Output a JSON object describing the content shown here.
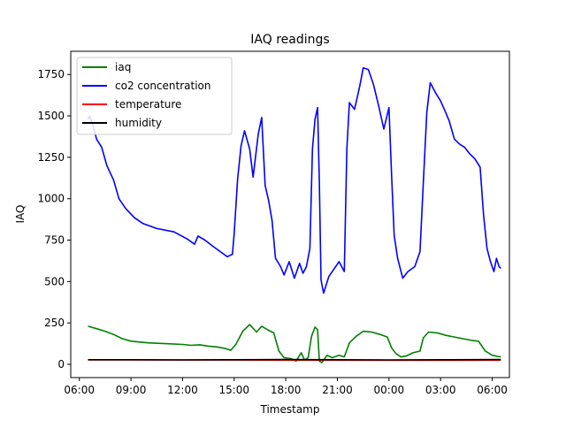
{
  "chart_data": {
    "type": "line",
    "title": "IAQ readings",
    "xlabel": "Timestamp",
    "ylabel": "IAQ",
    "xlim_hours": [
      5.5,
      31.0
    ],
    "ylim": [
      -80,
      1890
    ],
    "xticks": [
      {
        "value": 6,
        "label": "06:00"
      },
      {
        "value": 9,
        "label": "09:00"
      },
      {
        "value": 12,
        "label": "12:00"
      },
      {
        "value": 15,
        "label": "15:00"
      },
      {
        "value": 18,
        "label": "18:00"
      },
      {
        "value": 21,
        "label": "21:00"
      },
      {
        "value": 24,
        "label": "00:00"
      },
      {
        "value": 27,
        "label": "03:00"
      },
      {
        "value": 30,
        "label": "06:00"
      }
    ],
    "yticks": [
      0,
      250,
      500,
      750,
      1000,
      1250,
      1500,
      1750
    ],
    "grid": false,
    "legend": "upper-left",
    "series": [
      {
        "name": "iaq",
        "color": "#008000",
        "points": [
          [
            6.5,
            230
          ],
          [
            7.0,
            215
          ],
          [
            7.5,
            200
          ],
          [
            8.0,
            180
          ],
          [
            8.5,
            155
          ],
          [
            9.0,
            140
          ],
          [
            10.0,
            130
          ],
          [
            11.0,
            125
          ],
          [
            12.0,
            120
          ],
          [
            12.5,
            115
          ],
          [
            13.0,
            118
          ],
          [
            13.5,
            110
          ],
          [
            14.0,
            105
          ],
          [
            14.5,
            95
          ],
          [
            14.8,
            85
          ],
          [
            15.1,
            120
          ],
          [
            15.5,
            200
          ],
          [
            15.9,
            240
          ],
          [
            16.3,
            195
          ],
          [
            16.6,
            230
          ],
          [
            17.0,
            205
          ],
          [
            17.3,
            190
          ],
          [
            17.6,
            80
          ],
          [
            17.9,
            40
          ],
          [
            18.3,
            35
          ],
          [
            18.6,
            20
          ],
          [
            18.9,
            70
          ],
          [
            19.1,
            25
          ],
          [
            19.3,
            40
          ],
          [
            19.5,
            170
          ],
          [
            19.7,
            225
          ],
          [
            19.85,
            210
          ],
          [
            19.95,
            20
          ],
          [
            20.1,
            10
          ],
          [
            20.4,
            55
          ],
          [
            20.7,
            40
          ],
          [
            21.1,
            55
          ],
          [
            21.4,
            45
          ],
          [
            21.7,
            130
          ],
          [
            22.1,
            170
          ],
          [
            22.5,
            200
          ],
          [
            23.0,
            195
          ],
          [
            23.5,
            180
          ],
          [
            23.9,
            165
          ],
          [
            24.15,
            100
          ],
          [
            24.4,
            65
          ],
          [
            24.7,
            45
          ],
          [
            25.0,
            50
          ],
          [
            25.4,
            70
          ],
          [
            25.8,
            80
          ],
          [
            26.0,
            160
          ],
          [
            26.3,
            195
          ],
          [
            26.8,
            190
          ],
          [
            27.3,
            175
          ],
          [
            27.8,
            165
          ],
          [
            28.3,
            155
          ],
          [
            28.8,
            145
          ],
          [
            29.2,
            140
          ],
          [
            29.6,
            80
          ],
          [
            30.0,
            55
          ],
          [
            30.3,
            48
          ],
          [
            30.5,
            45
          ]
        ]
      },
      {
        "name": "co2 concentration",
        "color": "#0000ff",
        "points": [
          [
            6.5,
            1480
          ],
          [
            6.6,
            1500
          ],
          [
            6.8,
            1440
          ],
          [
            7.0,
            1360
          ],
          [
            7.3,
            1310
          ],
          [
            7.6,
            1200
          ],
          [
            8.0,
            1110
          ],
          [
            8.3,
            1000
          ],
          [
            8.7,
            940
          ],
          [
            9.2,
            885
          ],
          [
            9.7,
            850
          ],
          [
            10.5,
            820
          ],
          [
            11.5,
            800
          ],
          [
            12.3,
            755
          ],
          [
            12.7,
            725
          ],
          [
            12.9,
            775
          ],
          [
            13.3,
            750
          ],
          [
            13.8,
            710
          ],
          [
            14.2,
            680
          ],
          [
            14.6,
            650
          ],
          [
            14.9,
            665
          ],
          [
            15.0,
            790
          ],
          [
            15.2,
            1120
          ],
          [
            15.4,
            1320
          ],
          [
            15.6,
            1410
          ],
          [
            15.9,
            1300
          ],
          [
            16.1,
            1130
          ],
          [
            16.4,
            1390
          ],
          [
            16.6,
            1490
          ],
          [
            16.8,
            1080
          ],
          [
            17.0,
            990
          ],
          [
            17.2,
            870
          ],
          [
            17.4,
            640
          ],
          [
            17.7,
            590
          ],
          [
            17.9,
            540
          ],
          [
            18.2,
            620
          ],
          [
            18.5,
            520
          ],
          [
            18.8,
            610
          ],
          [
            19.0,
            550
          ],
          [
            19.2,
            590
          ],
          [
            19.4,
            700
          ],
          [
            19.55,
            1300
          ],
          [
            19.7,
            1480
          ],
          [
            19.85,
            1550
          ],
          [
            19.95,
            1100
          ],
          [
            20.05,
            510
          ],
          [
            20.2,
            430
          ],
          [
            20.5,
            530
          ],
          [
            20.8,
            575
          ],
          [
            21.1,
            620
          ],
          [
            21.4,
            560
          ],
          [
            21.55,
            1300
          ],
          [
            21.7,
            1580
          ],
          [
            22.0,
            1540
          ],
          [
            22.3,
            1680
          ],
          [
            22.5,
            1790
          ],
          [
            22.8,
            1780
          ],
          [
            23.1,
            1690
          ],
          [
            23.4,
            1560
          ],
          [
            23.7,
            1420
          ],
          [
            24.0,
            1550
          ],
          [
            24.15,
            1140
          ],
          [
            24.3,
            780
          ],
          [
            24.5,
            640
          ],
          [
            24.8,
            520
          ],
          [
            25.1,
            560
          ],
          [
            25.5,
            590
          ],
          [
            25.8,
            680
          ],
          [
            26.0,
            1100
          ],
          [
            26.2,
            1520
          ],
          [
            26.4,
            1700
          ],
          [
            26.7,
            1640
          ],
          [
            27.0,
            1590
          ],
          [
            27.3,
            1520
          ],
          [
            27.5,
            1470
          ],
          [
            27.8,
            1360
          ],
          [
            28.1,
            1330
          ],
          [
            28.4,
            1310
          ],
          [
            28.7,
            1270
          ],
          [
            29.0,
            1240
          ],
          [
            29.3,
            1190
          ],
          [
            29.5,
            900
          ],
          [
            29.7,
            700
          ],
          [
            29.9,
            620
          ],
          [
            30.1,
            560
          ],
          [
            30.25,
            640
          ],
          [
            30.4,
            590
          ],
          [
            30.5,
            580
          ]
        ]
      },
      {
        "name": "temperature",
        "color": "#ff0000",
        "points": [
          [
            6.5,
            27
          ],
          [
            9.0,
            27
          ],
          [
            12.0,
            26
          ],
          [
            15.0,
            26
          ],
          [
            18.0,
            25
          ],
          [
            21.0,
            25
          ],
          [
            24.0,
            24
          ],
          [
            27.0,
            24
          ],
          [
            30.5,
            25
          ]
        ]
      },
      {
        "name": "humidity",
        "color": "#000000",
        "points": [
          [
            6.5,
            28
          ],
          [
            9.0,
            28
          ],
          [
            12.0,
            27
          ],
          [
            15.0,
            28
          ],
          [
            18.0,
            29
          ],
          [
            21.0,
            28
          ],
          [
            24.0,
            27
          ],
          [
            27.0,
            28
          ],
          [
            30.5,
            29
          ]
        ]
      }
    ]
  }
}
